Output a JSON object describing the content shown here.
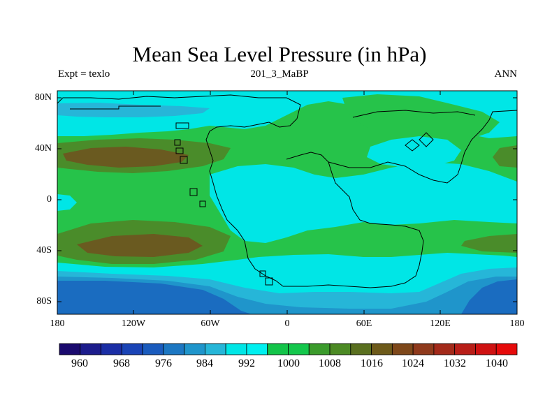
{
  "title": "Mean Sea Level Pressure (in hPa)",
  "subtitle_left": "Expt = texlo",
  "subtitle_center": "201_3_MaBP",
  "subtitle_right": "ANN",
  "latitude_labels": [
    "80N",
    "40N",
    "0",
    "40S",
    "80S"
  ],
  "longitude_labels": [
    "180",
    "120W",
    "60W",
    "0",
    "60E",
    "120E",
    "180"
  ],
  "colorbar": {
    "labels": [
      "960",
      "968",
      "976",
      "984",
      "992",
      "1000",
      "1008",
      "1016",
      "1024",
      "1032",
      "1040"
    ],
    "colors": [
      "#1a0a6e",
      "#1c1c8c",
      "#1b2ea5",
      "#1a44b6",
      "#1a5bbd",
      "#1c77c2",
      "#1f95cb",
      "#26b6d8",
      "#00e6e6",
      "#00f0f0",
      "#13c449",
      "#14c74c",
      "#3b9b2c",
      "#4c8a24",
      "#5a7020",
      "#6d5a1a",
      "#7e481a",
      "#8f3a1c",
      "#a32a1a",
      "#b81e18",
      "#cf1212",
      "#e60b0b"
    ]
  },
  "map_colors": {
    "p992": "#00c8d8",
    "p1000": "#00e6e6",
    "p1008": "#26c34a",
    "p1016": "#4a8c2a",
    "p1024": "#6a5a20",
    "p984": "#2a9ec8",
    "p976": "#1a6cc0"
  }
}
